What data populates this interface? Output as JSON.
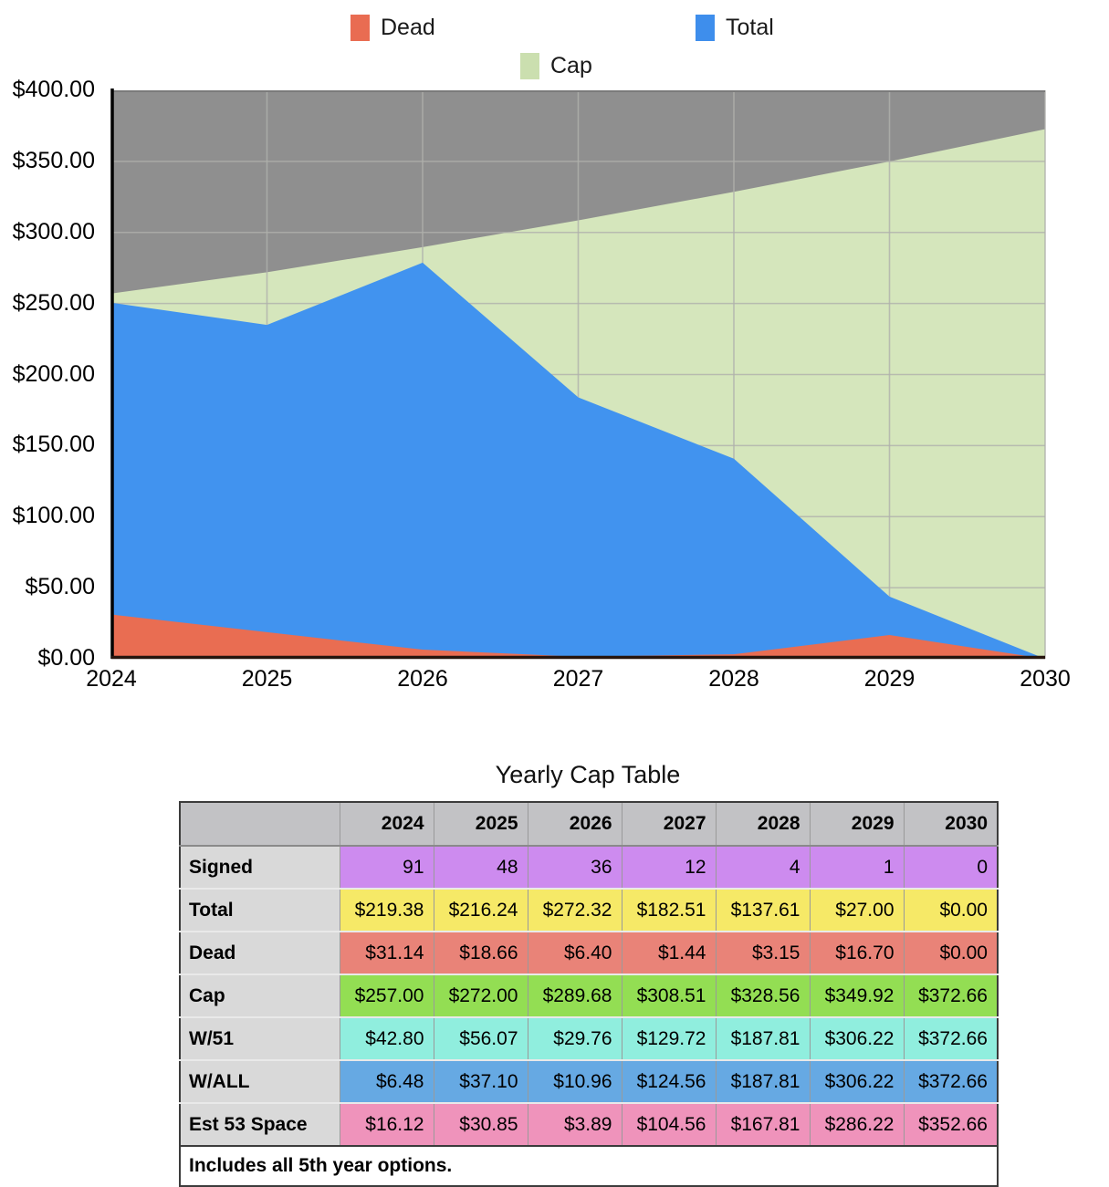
{
  "chart_data": {
    "type": "area",
    "title": "",
    "x": [
      "2024",
      "2025",
      "2026",
      "2027",
      "2028",
      "2029",
      "2030"
    ],
    "series": [
      {
        "name": "Dead",
        "color": "#e96d52",
        "values": [
          31.14,
          18.66,
          6.4,
          1.44,
          3.15,
          16.7,
          0.0
        ]
      },
      {
        "name": "Total",
        "color": "#4193ef",
        "values": [
          219.38,
          216.24,
          272.32,
          182.51,
          137.61,
          27.0,
          0.0
        ]
      },
      {
        "name": "Cap",
        "color": "#d5e6bc",
        "values": [
          257.0,
          272.0,
          289.68,
          308.51,
          328.56,
          349.92,
          372.66
        ]
      }
    ],
    "stacking": "Dead and Total are stacked from zero; Cap is drawn from zero behind them; grey is the region above Cap",
    "ylim": [
      0,
      400
    ],
    "y_tick_labels": [
      "$400.00",
      "$350.00",
      "$300.00",
      "$250.00",
      "$200.00",
      "$150.00",
      "$100.00",
      "$50.00",
      "$0.00"
    ],
    "grid": true,
    "plot_background": "#8f8f8f",
    "gridline_color": "#b0b1ac",
    "legend_position": "top",
    "legend": [
      {
        "label": "Dead",
        "color": "#e96c52"
      },
      {
        "label": "Total",
        "color": "#3e8eec"
      },
      {
        "label": "Cap",
        "color": "#cbdfaf"
      }
    ]
  },
  "table": {
    "title": "Yearly Cap Table",
    "years": [
      "2024",
      "2025",
      "2026",
      "2027",
      "2028",
      "2029",
      "2030"
    ],
    "rows": [
      {
        "label": "Signed",
        "color": "#cd8bef",
        "values": [
          "91",
          "48",
          "36",
          "12",
          "4",
          "1",
          "0"
        ]
      },
      {
        "label": "Total",
        "color": "#f6e967",
        "values": [
          "$219.38",
          "$216.24",
          "$272.32",
          "$182.51",
          "$137.61",
          "$27.00",
          "$0.00"
        ]
      },
      {
        "label": "Dead",
        "color": "#e98378",
        "values": [
          "$31.14",
          "$18.66",
          "$6.40",
          "$1.44",
          "$3.15",
          "$16.70",
          "$0.00"
        ]
      },
      {
        "label": "Cap",
        "color": "#93de53",
        "values": [
          "$257.00",
          "$272.00",
          "$289.68",
          "$308.51",
          "$328.56",
          "$349.92",
          "$372.66"
        ]
      },
      {
        "label": "W/51",
        "color": "#90eede",
        "values": [
          "$42.80",
          "$56.07",
          "$29.76",
          "$129.72",
          "$187.81",
          "$306.22",
          "$372.66"
        ]
      },
      {
        "label": "W/ALL",
        "color": "#66a9e3",
        "values": [
          "$6.48",
          "$37.10",
          "$10.96",
          "$124.56",
          "$187.81",
          "$306.22",
          "$372.66"
        ]
      },
      {
        "label": "Est 53 Space",
        "color": "#ef93bb",
        "values": [
          "$16.12",
          "$30.85",
          "$3.89",
          "$104.56",
          "$167.81",
          "$286.22",
          "$352.66"
        ]
      }
    ],
    "footnote": "Includes all 5th year options."
  }
}
